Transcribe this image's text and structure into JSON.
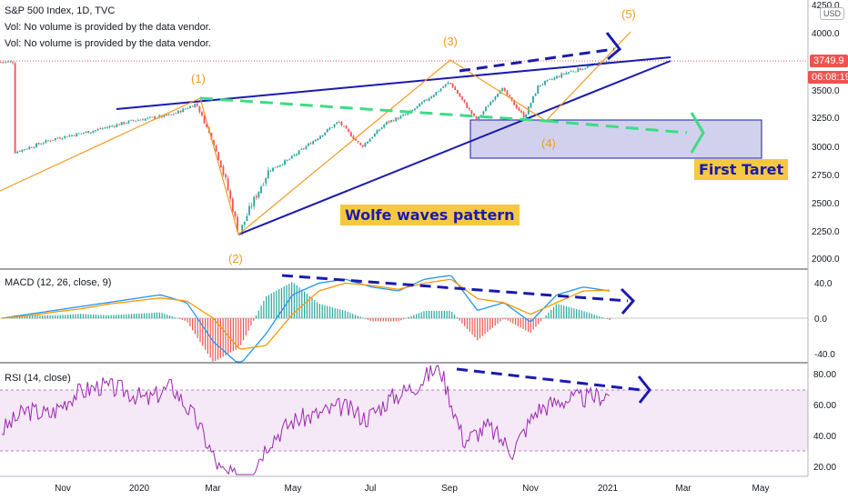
{
  "header": {
    "title": "S&P 500 Index, 1D, TVC",
    "vol_line_1": "Vol: No volume is provided by the data vendor.",
    "vol_line_2": "Vol: No volume is provided by the data vendor."
  },
  "currency_badge": "USD",
  "price_tag": {
    "value": "3749.9",
    "color": "#ef5350"
  },
  "timer_tag": {
    "value": "06:08:19",
    "color": "#ef5350"
  },
  "annotations": {
    "wolfe_label": "Wolfe waves pattern",
    "target_label": "First Taret",
    "wave_1": "(1)",
    "wave_2": "(2)",
    "wave_3": "(3)",
    "wave_4": "(4)",
    "wave_5": "(5)"
  },
  "macd_panel": {
    "title": "MACD (12, 26, close, 9)"
  },
  "rsi_panel": {
    "title": "RSI (14, close)"
  },
  "colors": {
    "up": "#26a69a",
    "down": "#ef5350",
    "trendline": "#1a1ab0",
    "wave": "#f59a23",
    "dashed_green": "#3ddc84",
    "target_zone": "#c5c5e8",
    "macd": "#2196f3",
    "signal": "#ff9800",
    "rsi": "#9c27b0"
  },
  "chart_data": [
    {
      "type": "candlestick",
      "title": "S&P 500 Index, 1D, TVC",
      "x_ticks": [
        "Nov",
        "2020",
        "Mar",
        "May",
        "Jul",
        "Sep",
        "Nov",
        "2021",
        "Mar",
        "May"
      ],
      "y_ticks": [
        "2000.0",
        "2250.0",
        "2500.0",
        "2750.0",
        "3000.0",
        "3250.0",
        "3500.0",
        "3750.0",
        "4000.0",
        "4250.0"
      ],
      "ylim": [
        1980,
        4270
      ],
      "path": [
        [
          "2019-10-01",
          2960
        ],
        [
          "2019-11-01",
          3080
        ],
        [
          "2019-12-01",
          3150
        ],
        [
          "2020-01-01",
          3240
        ],
        [
          "2020-01-31",
          3290
        ],
        [
          "2020-02-19",
          3390
        ],
        [
          "2020-03-03",
          3050
        ],
        [
          "2020-03-13",
          2700
        ],
        [
          "2020-03-23",
          2237
        ],
        [
          "2020-04-01",
          2480
        ],
        [
          "2020-04-15",
          2800
        ],
        [
          "2020-05-01",
          2900
        ],
        [
          "2020-06-08",
          3230
        ],
        [
          "2020-06-26",
          3010
        ],
        [
          "2020-07-15",
          3220
        ],
        [
          "2020-08-01",
          3300
        ],
        [
          "2020-09-02",
          3580
        ],
        [
          "2020-09-23",
          3240
        ],
        [
          "2020-10-12",
          3530
        ],
        [
          "2020-10-30",
          3270
        ],
        [
          "2020-11-10",
          3550
        ],
        [
          "2020-12-01",
          3660
        ],
        [
          "2020-12-31",
          3756
        ]
      ]
    },
    {
      "type": "line",
      "title": "MACD (12, 26, close, 9)",
      "y_ticks": [
        "40.0",
        "0.0",
        "-40.0"
      ],
      "ylim": [
        -50,
        55
      ],
      "series": [
        {
          "name": "MACD",
          "values": [
            0,
            5,
            10,
            15,
            20,
            25,
            30,
            20,
            -30,
            -60,
            -20,
            30,
            45,
            50,
            40,
            35,
            50,
            55,
            10,
            20,
            -5,
            30,
            40,
            35
          ]
        },
        {
          "name": "Signal",
          "values": [
            0,
            3,
            8,
            12,
            18,
            22,
            26,
            22,
            0,
            -40,
            -35,
            5,
            35,
            45,
            42,
            37,
            45,
            50,
            25,
            20,
            5,
            20,
            35,
            36
          ]
        }
      ]
    },
    {
      "type": "line",
      "title": "RSI (14, close)",
      "y_ticks": [
        "80.00",
        "60.00",
        "40.00",
        "20.00"
      ],
      "ylim": [
        15,
        85
      ],
      "series": [
        {
          "name": "RSI",
          "values": [
            50,
            60,
            58,
            68,
            72,
            70,
            65,
            72,
            55,
            30,
            25,
            45,
            55,
            58,
            62,
            56,
            66,
            72,
            82,
            45,
            52,
            40,
            60,
            65,
            66,
            68
          ]
        }
      ]
    }
  ]
}
